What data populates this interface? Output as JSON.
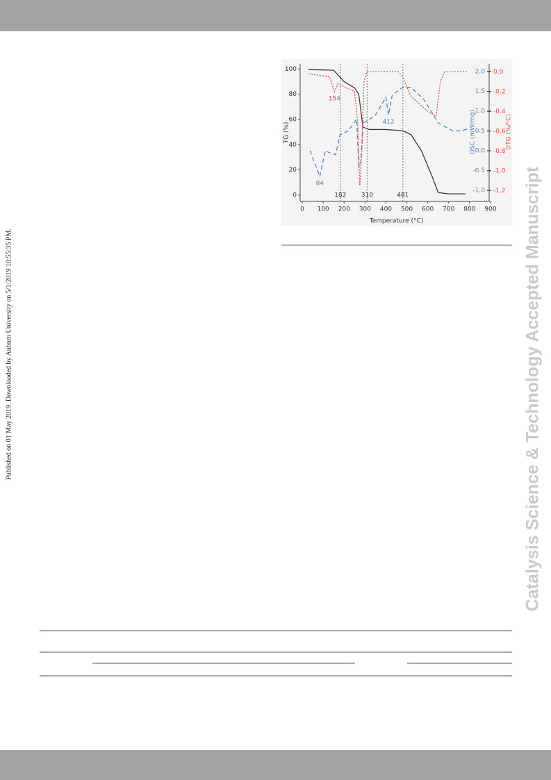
{
  "side_note": "Published on 01 May 2019. Downloaded by Auburn University on 5/1/2019 10:55:35 PM.",
  "watermark": "Catalysis Science & Technology Accepted Manuscript",
  "chart_data": {
    "type": "line",
    "xlabel": "Temperature (°C)",
    "ylabel": "TG (%)",
    "y2label": "DSC (mW/mg)",
    "y3label": "DTG (%/°C)",
    "xlim": [
      0,
      900
    ],
    "xticks": [
      0,
      100,
      200,
      300,
      400,
      500,
      600,
      700,
      800,
      900
    ],
    "ylim": [
      -5,
      104
    ],
    "yticks": [
      0,
      20,
      40,
      60,
      80,
      100
    ],
    "y2lim": [
      -1.28,
      2.19
    ],
    "y2ticks": [
      {
        "value": -1,
        "label": "-1.0"
      },
      {
        "value": -0.5,
        "label": "-0.5"
      },
      {
        "value": 0,
        "label": "0.0"
      },
      {
        "value": 0.5,
        "label": "0.5"
      },
      {
        "value": 1,
        "label": "1.0"
      },
      {
        "value": 1.5,
        "label": "1.5"
      },
      {
        "value": 2,
        "label": "2.0"
      }
    ],
    "y3lim": [
      -1.31,
      0.08
    ],
    "y3ticks": [
      {
        "value": -1.2,
        "label": "-1.2"
      },
      {
        "value": -1,
        "label": "-1.0"
      },
      {
        "value": -0.8,
        "label": "-0.8"
      },
      {
        "value": -0.6,
        "label": "-0.6"
      },
      {
        "value": -0.4,
        "label": "-0.4"
      },
      {
        "value": -0.2,
        "label": "-0.2"
      },
      {
        "value": 0,
        "label": "0.0"
      }
    ],
    "series": [
      {
        "name": "TG",
        "color": "#3a3a3a",
        "dash": "none",
        "axis": "y",
        "x": [
          30,
          150,
          200,
          250,
          270,
          290,
          320,
          400,
          480,
          520,
          570,
          620,
          650,
          700,
          780
        ],
        "values": [
          99.5,
          99,
          90,
          85,
          80,
          54,
          52,
          52,
          51,
          48,
          35,
          15,
          2,
          1,
          1
        ]
      },
      {
        "name": "DSC",
        "color": "#4f7fbf",
        "dash": "6 4",
        "axis": "y2",
        "x": [
          37,
          84,
          110,
          130,
          160,
          180,
          220,
          260,
          270,
          280,
          290,
          310,
          350,
          400,
          412,
          430,
          480,
          520,
          580,
          650,
          720,
          760,
          790
        ],
        "values": [
          0,
          -0.65,
          0,
          -0.05,
          -0.1,
          0.4,
          0.5,
          0.8,
          -0.4,
          -0.3,
          0.7,
          0.75,
          0.9,
          1.35,
          0.9,
          1.4,
          1.6,
          1.6,
          1.3,
          0.7,
          0.5,
          0.5,
          0.55
        ]
      },
      {
        "name": "DTG",
        "color": "#d9534f",
        "dash": "2 2",
        "axis": "y3",
        "x": [
          30,
          130,
          154,
          170,
          200,
          250,
          265,
          275,
          285,
          295,
          310,
          350,
          460,
          480,
          520,
          600,
          640,
          660,
          680,
          790
        ],
        "values": [
          -0.02,
          -0.05,
          -0.2,
          -0.12,
          -0.15,
          -0.2,
          -0.5,
          -1.15,
          -0.8,
          -0.1,
          0,
          0,
          0,
          -0.05,
          -0.25,
          -0.4,
          -0.45,
          -0.1,
          0,
          0
        ]
      }
    ],
    "vlines": [
      182,
      310,
      481
    ],
    "annotations": [
      {
        "value": 154,
        "series": 2
      },
      {
        "value": 84,
        "series": 1
      },
      {
        "value": 412,
        "series": 1
      }
    ]
  }
}
